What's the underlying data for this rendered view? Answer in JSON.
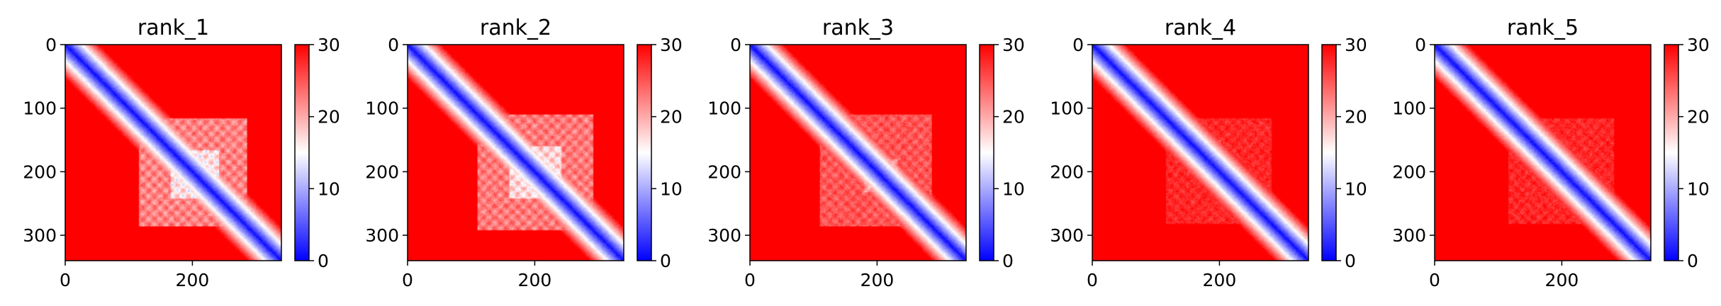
{
  "chart_data": [
    {
      "type": "heatmap",
      "title": "rank_1",
      "xticks": [
        "0",
        "200"
      ],
      "yticks": [
        "0",
        "100",
        "200",
        "300"
      ],
      "xlim": [
        0,
        340
      ],
      "ylim": [
        340,
        0
      ],
      "colorbar": {
        "ticks": [
          "0",
          "10",
          "20",
          "30"
        ],
        "range": [
          0,
          30
        ],
        "cmap": [
          "#0000ff",
          "#ffffff",
          "#ff0000"
        ]
      },
      "block": {
        "from": 115,
        "to": 285,
        "core_from": 165,
        "core_to": 240,
        "strength": 0.85
      }
    },
    {
      "type": "heatmap",
      "title": "rank_2",
      "xticks": [
        "0",
        "200"
      ],
      "yticks": [
        "0",
        "100",
        "200",
        "300"
      ],
      "xlim": [
        0,
        340
      ],
      "ylim": [
        340,
        0
      ],
      "colorbar": {
        "ticks": [
          "0",
          "10",
          "20",
          "30"
        ],
        "range": [
          0,
          30
        ],
        "cmap": [
          "#0000ff",
          "#ffffff",
          "#ff0000"
        ]
      },
      "block": {
        "from": 110,
        "to": 290,
        "core_from": 160,
        "core_to": 240,
        "strength": 0.8
      }
    },
    {
      "type": "heatmap",
      "title": "rank_3",
      "xticks": [
        "0",
        "200"
      ],
      "yticks": [
        "0",
        "100",
        "200",
        "300"
      ],
      "xlim": [
        0,
        340
      ],
      "ylim": [
        340,
        0
      ],
      "colorbar": {
        "ticks": [
          "0",
          "10",
          "20",
          "30"
        ],
        "range": [
          0,
          30
        ],
        "cmap": [
          "#0000ff",
          "#ffffff",
          "#ff0000"
        ]
      },
      "block": {
        "from": 110,
        "to": 285,
        "core_from": 180,
        "core_to": 230,
        "strength": 0.6
      }
    },
    {
      "type": "heatmap",
      "title": "rank_4",
      "xticks": [
        "0",
        "200"
      ],
      "yticks": [
        "0",
        "100",
        "200",
        "300"
      ],
      "xlim": [
        0,
        340
      ],
      "ylim": [
        340,
        0
      ],
      "colorbar": {
        "ticks": [
          "0",
          "10",
          "20",
          "30"
        ],
        "range": [
          0,
          30
        ],
        "cmap": [
          "#0000ff",
          "#ffffff",
          "#ff0000"
        ]
      },
      "block": {
        "from": 115,
        "to": 280,
        "core_from": 150,
        "core_to": 200,
        "strength": 0.35
      }
    },
    {
      "type": "heatmap",
      "title": "rank_5",
      "xticks": [
        "0",
        "200"
      ],
      "yticks": [
        "0",
        "100",
        "200",
        "300"
      ],
      "xlim": [
        0,
        340
      ],
      "ylim": [
        340,
        0
      ],
      "colorbar": {
        "ticks": [
          "0",
          "10",
          "20",
          "30"
        ],
        "range": [
          0,
          30
        ],
        "cmap": [
          "#0000ff",
          "#ffffff",
          "#ff0000"
        ]
      },
      "block": {
        "from": 115,
        "to": 280,
        "core_from": 150,
        "core_to": 200,
        "strength": 0.35
      }
    }
  ]
}
